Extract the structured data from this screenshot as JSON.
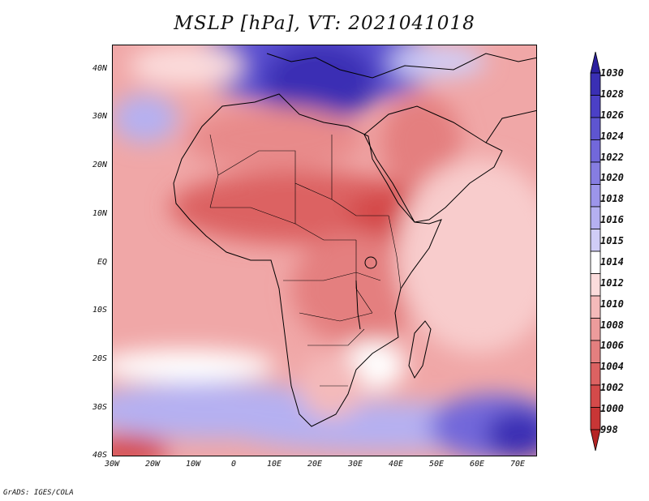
{
  "title": "MSLP [hPa], VT: 2021041018",
  "footer": "GrADS: IGES/COLA",
  "map": {
    "variable": "MSLP",
    "units": "hPa",
    "valid_time": "2021041018",
    "lon_range": [
      -30,
      75
    ],
    "lat_range": [
      -40,
      45
    ],
    "lat_ticks": [
      "40N",
      "30N",
      "20N",
      "10N",
      "EQ",
      "10S",
      "20S",
      "30S",
      "40S"
    ],
    "lon_ticks": [
      "30W",
      "20W",
      "10W",
      "0",
      "10E",
      "20E",
      "30E",
      "40E",
      "50E",
      "60E",
      "70E"
    ],
    "colors": {
      "low_strong": "#d43c3c",
      "low": "#e67a7a",
      "neutral": "#ffffff",
      "high": "#a6a6f0",
      "high_strong": "#3b2fb8",
      "coast": "#000000"
    }
  },
  "colorbar": {
    "levels": [
      "1030",
      "1028",
      "1026",
      "1024",
      "1022",
      "1020",
      "1018",
      "1016",
      "1015",
      "1014",
      "1012",
      "1010",
      "1008",
      "1006",
      "1004",
      "1002",
      "1000",
      "998"
    ],
    "colors": [
      "#2b1f9e",
      "#3a2fb4",
      "#4b40c6",
      "#5e55d0",
      "#7268da",
      "#867de2",
      "#9c95ea",
      "#b5b0f1",
      "#d0cdf7",
      "#ffffff",
      "#fbdcdc",
      "#f4baba",
      "#ec9c9c",
      "#e47f7f",
      "#dc6262",
      "#d44a4a",
      "#c83636",
      "#b52424"
    ]
  }
}
